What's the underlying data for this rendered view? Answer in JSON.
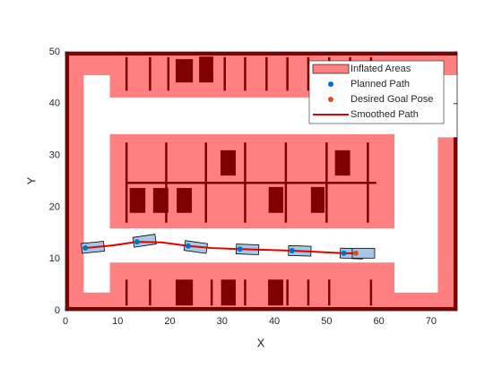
{
  "chart_data": {
    "type": "map",
    "xlabel": "X",
    "ylabel": "Y",
    "xlim": [
      0,
      75
    ],
    "ylim": [
      0,
      50
    ],
    "xticks": [
      0,
      10,
      20,
      30,
      40,
      50,
      60,
      70
    ],
    "yticks": [
      0,
      10,
      20,
      30,
      40,
      50
    ],
    "legend": "northeast",
    "inflated": {
      "name": "Inflated Areas",
      "color": "#ff8080",
      "rects": [
        [
          0,
          0,
          3.5,
          50
        ],
        [
          0,
          45.5,
          75,
          50
        ],
        [
          0,
          0,
          75,
          3.5
        ],
        [
          71.3,
          0,
          75,
          33.5
        ],
        [
          8.5,
          41.2,
          63,
          50
        ],
        [
          8.5,
          15.9,
          63,
          34.1
        ],
        [
          8.5,
          0,
          63,
          9.3
        ]
      ]
    },
    "obstacles": {
      "color": "#800000",
      "rects": [
        [
          0,
          0,
          0.7,
          50
        ],
        [
          0,
          49.3,
          75,
          50
        ],
        [
          0,
          0,
          75,
          0.7
        ],
        [
          74.3,
          0,
          75,
          33.5
        ],
        [
          21.1,
          44.1,
          24.4,
          48.6
        ],
        [
          25.6,
          44.1,
          28.3,
          49.1
        ],
        [
          29.7,
          26.1,
          32.6,
          31
        ],
        [
          51.6,
          26.1,
          54.5,
          31
        ],
        [
          12.3,
          18.9,
          15.3,
          23.7
        ],
        [
          16.8,
          18.9,
          19.7,
          23.7
        ],
        [
          21.3,
          18.9,
          24.2,
          23.7
        ],
        [
          38.9,
          18.9,
          41.7,
          23.9
        ],
        [
          47,
          18.9,
          49.6,
          23.9
        ],
        [
          21.1,
          1,
          24.4,
          6
        ],
        [
          29.8,
          1,
          32.6,
          6
        ],
        [
          38.8,
          1,
          41.7,
          6
        ]
      ],
      "lines": [
        [
          11.7,
          24.7,
          59.5,
          24.7
        ],
        [
          11.7,
          42.5,
          11.7,
          49
        ],
        [
          16.2,
          42.5,
          16.2,
          49
        ],
        [
          19.7,
          42.5,
          19.7,
          49
        ],
        [
          30.5,
          42.5,
          30.5,
          49
        ],
        [
          34.4,
          42.5,
          34.4,
          49
        ],
        [
          38.5,
          42.5,
          38.5,
          49
        ],
        [
          42.5,
          42.5,
          42.5,
          49
        ],
        [
          46.5,
          42.5,
          46.5,
          49
        ],
        [
          50.5,
          42.5,
          50.5,
          49
        ],
        [
          54.5,
          42.5,
          54.5,
          49
        ],
        [
          58.5,
          42.5,
          58.5,
          49
        ],
        [
          11.7,
          17,
          11.7,
          32.5
        ],
        [
          19.3,
          17,
          19.3,
          32.5
        ],
        [
          26.9,
          17,
          26.9,
          32.5
        ],
        [
          34.4,
          17,
          34.4,
          32.5
        ],
        [
          42.2,
          17,
          42.2,
          32.5
        ],
        [
          50,
          17,
          50,
          32.5
        ],
        [
          57.9,
          17,
          57.9,
          32.5
        ],
        [
          11.7,
          1,
          11.7,
          6
        ],
        [
          16.2,
          1,
          16.2,
          6
        ],
        [
          28,
          1,
          28,
          6
        ],
        [
          34.4,
          1,
          34.4,
          6
        ],
        [
          42.5,
          1,
          42.5,
          6
        ],
        [
          46.5,
          1,
          46.5,
          6
        ],
        [
          50.5,
          1,
          50.5,
          6
        ],
        [
          58.5,
          1,
          58.5,
          6
        ]
      ]
    },
    "series": [
      {
        "name": "Planned Path",
        "color": "#0072bd",
        "x": [
          3.8,
          13.7,
          23.5,
          33.4,
          43.4,
          53.3
        ],
        "y": [
          12.1,
          13.3,
          12.5,
          11.9,
          11.6,
          11.1
        ]
      },
      {
        "name": "Desired Goal Pose",
        "color": "#d95319",
        "x": [
          55.6
        ],
        "y": [
          11.1
        ]
      },
      {
        "name": "Smoothed Path",
        "color": "#e00000",
        "x": [
          3.8,
          9,
          13.7,
          18.5,
          23.5,
          28,
          33.4,
          43.4,
          53.3,
          55.6
        ],
        "y": [
          12.1,
          12.6,
          13.3,
          13.2,
          12.5,
          12.1,
          11.9,
          11.6,
          11.1,
          11.1
        ]
      }
    ]
  }
}
